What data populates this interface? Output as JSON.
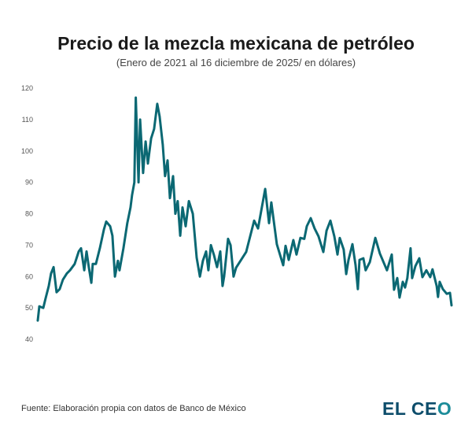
{
  "title": "Precio de la mezcla mexicana de petróleo",
  "subtitle": "(Enero de 2021 al 16 diciembre de 2025/ en dólares)",
  "source": "Fuente: Elaboración propia con datos de Banco de México",
  "logo": {
    "part1": "EL CE",
    "part2": "O"
  },
  "colors": {
    "line": "#0b6873",
    "ticks": "#555555",
    "logo_dark": "#0d4d6b",
    "logo_teal": "#1c8c99"
  },
  "chart_data": {
    "type": "line",
    "title": "Precio de la mezcla mexicana de petróleo",
    "subtitle": "(Enero de 2021 al 16 diciembre de 2025/ en dólares)",
    "xlabel": "",
    "ylabel": "",
    "ylim": [
      40,
      120
    ],
    "yticks": [
      "40",
      "50",
      "60",
      "70",
      "80",
      "90",
      "100",
      "110",
      "120"
    ],
    "grid": false,
    "x": [
      "2021-01-04",
      "2021-01-11",
      "2021-01-28",
      "2021-02-07",
      "2021-02-21",
      "2021-03-03",
      "2021-03-14",
      "2021-03-27",
      "2021-04-10",
      "2021-04-24",
      "2021-05-11",
      "2021-05-25",
      "2021-06-14",
      "2021-07-02",
      "2021-07-12",
      "2021-07-26",
      "2021-08-05",
      "2021-08-15",
      "2021-08-26",
      "2021-09-01",
      "2021-09-15",
      "2021-10-02",
      "2021-10-20",
      "2021-10-30",
      "2021-11-16",
      "2021-11-26",
      "2021-12-07",
      "2021-12-20",
      "2021-12-27",
      "2022-01-13",
      "2022-01-30",
      "2022-02-13",
      "2022-02-20",
      "2022-03-02",
      "2022-03-08",
      "2022-03-20",
      "2022-03-27",
      "2022-04-09",
      "2022-04-20",
      "2022-04-30",
      "2022-05-14",
      "2022-05-27",
      "2022-06-10",
      "2022-06-20",
      "2022-07-04",
      "2022-07-14",
      "2022-07-25",
      "2022-08-04",
      "2022-08-18",
      "2022-08-28",
      "2022-09-07",
      "2022-09-18",
      "2022-09-28",
      "2022-10-12",
      "2022-10-26",
      "2022-11-12",
      "2022-11-29",
      "2022-12-13",
      "2022-12-26",
      "2023-01-09",
      "2023-01-19",
      "2023-01-30",
      "2023-02-12",
      "2023-02-26",
      "2023-03-12",
      "2023-03-22",
      "2023-03-29",
      "2023-04-15",
      "2023-04-26",
      "2023-05-09",
      "2023-05-20",
      "2023-07-03",
      "2023-08-07",
      "2023-08-24",
      "2023-09-24",
      "2023-10-11",
      "2023-10-21",
      "2023-11-14",
      "2023-12-12",
      "2023-12-22",
      "2024-01-05",
      "2024-01-25",
      "2024-02-08",
      "2024-02-25",
      "2024-03-13",
      "2024-03-24",
      "2024-04-10",
      "2024-04-27",
      "2024-05-14",
      "2024-06-04",
      "2024-06-18",
      "2024-07-05",
      "2024-07-22",
      "2024-08-05",
      "2024-08-15",
      "2024-09-01",
      "2024-09-12",
      "2024-09-22",
      "2024-10-09",
      "2024-10-23",
      "2024-11-02",
      "2024-11-09",
      "2024-11-26",
      "2024-12-06",
      "2024-12-24",
      "2025-01-17",
      "2025-02-06",
      "2025-03-09",
      "2025-03-30",
      "2025-04-09",
      "2025-04-23",
      "2025-05-03",
      "2025-05-17",
      "2025-05-27",
      "2025-06-06",
      "2025-06-20",
      "2025-06-27",
      "2025-07-11",
      "2025-07-28",
      "2025-08-11",
      "2025-08-28",
      "2025-09-14",
      "2025-09-24",
      "2025-10-12",
      "2025-10-18",
      "2025-10-25",
      "2025-11-08",
      "2025-11-25",
      "2025-12-09",
      "2025-12-16"
    ],
    "series": [
      {
        "values": [
          46,
          50.5,
          50,
          53,
          57,
          61,
          63,
          55,
          56,
          59,
          61,
          62,
          64,
          68,
          69,
          62,
          68,
          63,
          58,
          64,
          64,
          69,
          75,
          77.5,
          76,
          73,
          60,
          65,
          62,
          69,
          77,
          82,
          86,
          90,
          117,
          90,
          110,
          93,
          103,
          96,
          104,
          107,
          115,
          111,
          102,
          92,
          97,
          85,
          92,
          80,
          84,
          73,
          82,
          76,
          84,
          80,
          66,
          60,
          65,
          68,
          62,
          70,
          67,
          63,
          68,
          57,
          60,
          72,
          70,
          60,
          62.8,
          67.8,
          77.8,
          75.3,
          87.9,
          77,
          83.6,
          70.3,
          63.6,
          69.8,
          65.3,
          71.6,
          67,
          72.3,
          72,
          76,
          78.6,
          75.3,
          72.8,
          67.8,
          74.6,
          77.8,
          72.8,
          67,
          72.3,
          68.6,
          60.8,
          65.3,
          70.3,
          63.6,
          56,
          65.3,
          65.8,
          62,
          64.6,
          72.3,
          67.3,
          62,
          67,
          55.8,
          59.5,
          53.3,
          58.3,
          56.5,
          59.5,
          69,
          59.5,
          63.3,
          65.8,
          59.8,
          62,
          59.8,
          62.3,
          57,
          53.5,
          58.3,
          56,
          54.5,
          54.8,
          50.8
        ]
      }
    ]
  }
}
